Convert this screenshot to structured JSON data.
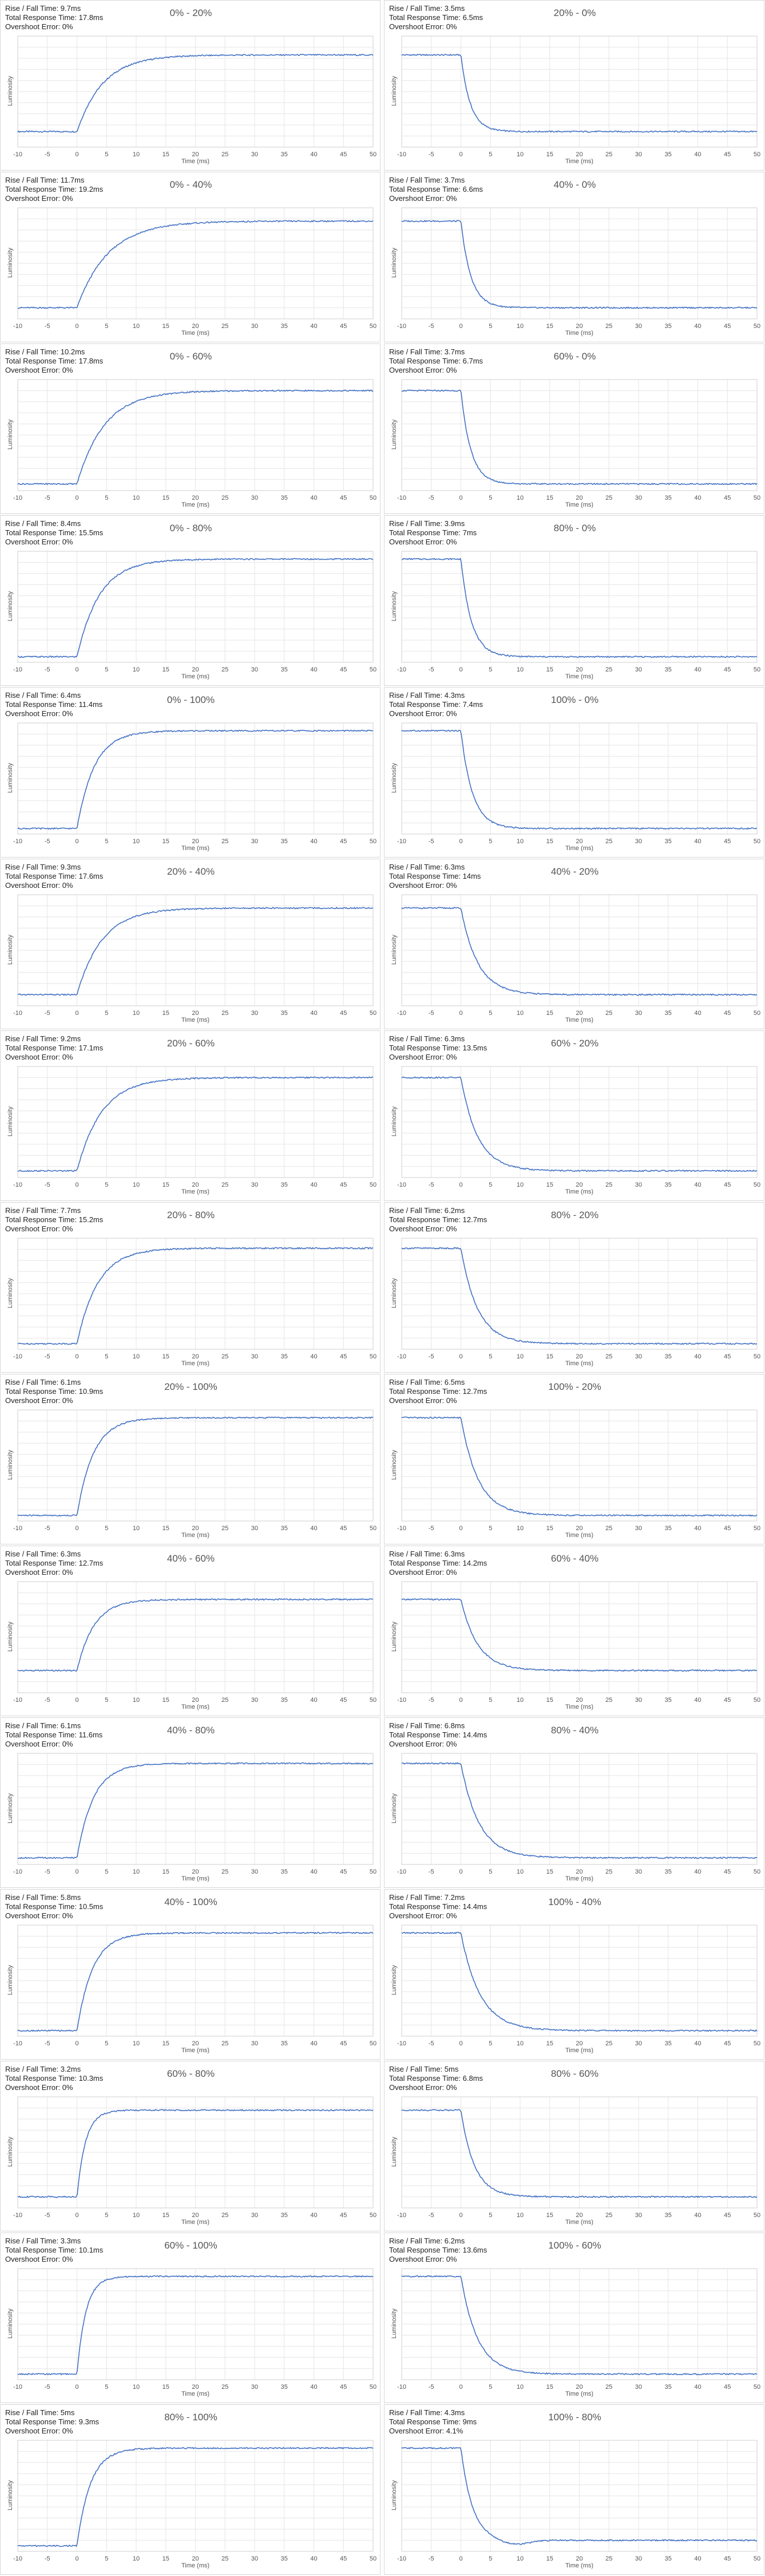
{
  "common": {
    "xlabel": "Time (ms)",
    "ylabel": "Luminosity",
    "xticks": [
      -10,
      -5,
      0,
      5,
      10,
      15,
      20,
      25,
      30,
      35,
      40,
      45,
      50
    ],
    "line_color": "#4472c4",
    "grid_color": "#e6e6e6"
  },
  "chart_data": [
    {
      "type": "line",
      "title": "0% - 20%",
      "rise_fall": "Rise / Fall Time: 9.7ms",
      "total": "Total Response Time: 17.8ms",
      "overshoot": "Overshoot Error: 0%",
      "xlim": [
        -10,
        50
      ],
      "dir": "rise",
      "start": 0.14,
      "end": 0.83,
      "tau": 9.7
    },
    {
      "type": "line",
      "title": "20% - 0%",
      "rise_fall": "Rise / Fall Time: 3.5ms",
      "total": "Total Response Time: 6.5ms",
      "overshoot": "Overshoot Error: 0%",
      "xlim": [
        -10,
        50
      ],
      "dir": "fall",
      "start": 0.83,
      "end": 0.14,
      "tau": 3.5
    },
    {
      "type": "line",
      "title": "0% - 40%",
      "rise_fall": "Rise / Fall Time: 11.7ms",
      "total": "Total Response Time: 19.2ms",
      "overshoot": "Overshoot Error: 0%",
      "xlim": [
        -10,
        50
      ],
      "dir": "rise",
      "start": 0.1,
      "end": 0.88,
      "tau": 11.7
    },
    {
      "type": "line",
      "title": "40% - 0%",
      "rise_fall": "Rise / Fall Time: 3.7ms",
      "total": "Total Response Time: 6.6ms",
      "overshoot": "Overshoot Error: 0%",
      "xlim": [
        -10,
        50
      ],
      "dir": "fall",
      "start": 0.88,
      "end": 0.1,
      "tau": 3.7
    },
    {
      "type": "line",
      "title": "0% - 60%",
      "rise_fall": "Rise / Fall Time: 10.2ms",
      "total": "Total Response Time: 17.8ms",
      "overshoot": "Overshoot Error: 0%",
      "xlim": [
        -10,
        50
      ],
      "dir": "rise",
      "start": 0.06,
      "end": 0.9,
      "tau": 10.2
    },
    {
      "type": "line",
      "title": "60% - 0%",
      "rise_fall": "Rise / Fall Time: 3.7ms",
      "total": "Total Response Time: 6.7ms",
      "overshoot": "Overshoot Error: 0%",
      "xlim": [
        -10,
        50
      ],
      "dir": "fall",
      "start": 0.9,
      "end": 0.06,
      "tau": 3.7
    },
    {
      "type": "line",
      "title": "0% - 80%",
      "rise_fall": "Rise / Fall Time: 8.4ms",
      "total": "Total Response Time: 15.5ms",
      "overshoot": "Overshoot Error: 0%",
      "xlim": [
        -10,
        50
      ],
      "dir": "rise",
      "start": 0.05,
      "end": 0.93,
      "tau": 8.4
    },
    {
      "type": "line",
      "title": "80% - 0%",
      "rise_fall": "Rise / Fall Time: 3.9ms",
      "total": "Total Response Time: 7ms",
      "overshoot": "Overshoot Error: 0%",
      "xlim": [
        -10,
        50
      ],
      "dir": "fall",
      "start": 0.93,
      "end": 0.05,
      "tau": 3.9
    },
    {
      "type": "line",
      "title": "0% - 100%",
      "rise_fall": "Rise / Fall Time: 6.4ms",
      "total": "Total Response Time: 11.4ms",
      "overshoot": "Overshoot Error: 0%",
      "xlim": [
        -10,
        50
      ],
      "dir": "rise",
      "start": 0.05,
      "end": 0.93,
      "tau": 6.4
    },
    {
      "type": "line",
      "title": "100% - 0%",
      "rise_fall": "Rise / Fall Time: 4.3ms",
      "total": "Total Response Time: 7.4ms",
      "overshoot": "Overshoot Error: 0%",
      "xlim": [
        -10,
        50
      ],
      "dir": "fall",
      "start": 0.93,
      "end": 0.05,
      "tau": 4.3
    },
    {
      "type": "line",
      "title": "20% - 40%",
      "rise_fall": "Rise / Fall Time: 9.3ms",
      "total": "Total Response Time: 17.6ms",
      "overshoot": "Overshoot Error: 0%",
      "xlim": [
        -10,
        50
      ],
      "dir": "rise",
      "start": 0.1,
      "end": 0.88,
      "tau": 9.3
    },
    {
      "type": "line",
      "title": "40% - 20%",
      "rise_fall": "Rise / Fall Time: 6.3ms",
      "total": "Total Response Time: 14ms",
      "overshoot": "Overshoot Error: 0%",
      "xlim": [
        -10,
        50
      ],
      "dir": "fall",
      "start": 0.88,
      "end": 0.1,
      "tau": 6.3
    },
    {
      "type": "line",
      "title": "20% - 60%",
      "rise_fall": "Rise / Fall Time: 9.2ms",
      "total": "Total Response Time: 17.1ms",
      "overshoot": "Overshoot Error: 0%",
      "xlim": [
        -10,
        50
      ],
      "dir": "rise",
      "start": 0.06,
      "end": 0.9,
      "tau": 9.2
    },
    {
      "type": "line",
      "title": "60% - 20%",
      "rise_fall": "Rise / Fall Time: 6.3ms",
      "total": "Total Response Time: 13.5ms",
      "overshoot": "Overshoot Error: 0%",
      "xlim": [
        -10,
        50
      ],
      "dir": "fall",
      "start": 0.9,
      "end": 0.06,
      "tau": 6.3
    },
    {
      "type": "line",
      "title": "20% - 80%",
      "rise_fall": "Rise / Fall Time: 7.7ms",
      "total": "Total Response Time: 15.2ms",
      "overshoot": "Overshoot Error: 0%",
      "xlim": [
        -10,
        50
      ],
      "dir": "rise",
      "start": 0.05,
      "end": 0.91,
      "tau": 7.7
    },
    {
      "type": "line",
      "title": "80% - 20%",
      "rise_fall": "Rise / Fall Time: 6.2ms",
      "total": "Total Response Time: 12.7ms",
      "overshoot": "Overshoot Error: 0%",
      "xlim": [
        -10,
        50
      ],
      "dir": "fall",
      "start": 0.91,
      "end": 0.05,
      "tau": 6.2
    },
    {
      "type": "line",
      "title": "20% - 100%",
      "rise_fall": "Rise / Fall Time: 6.1ms",
      "total": "Total Response Time: 10.9ms",
      "overshoot": "Overshoot Error: 0%",
      "xlim": [
        -10,
        50
      ],
      "dir": "rise",
      "start": 0.05,
      "end": 0.93,
      "tau": 6.1
    },
    {
      "type": "line",
      "title": "100% - 20%",
      "rise_fall": "Rise / Fall Time: 6.5ms",
      "total": "Total Response Time: 12.7ms",
      "overshoot": "Overshoot Error: 0%",
      "xlim": [
        -10,
        50
      ],
      "dir": "fall",
      "start": 0.93,
      "end": 0.05,
      "tau": 6.5
    },
    {
      "type": "line",
      "title": "40% - 60%",
      "rise_fall": "Rise / Fall Time: 6.3ms",
      "total": "Total Response Time: 12.7ms",
      "overshoot": "Overshoot Error: 0%",
      "xlim": [
        -10,
        50
      ],
      "dir": "rise",
      "start": 0.2,
      "end": 0.84,
      "tau": 6.3
    },
    {
      "type": "line",
      "title": "60% - 40%",
      "rise_fall": "Rise / Fall Time: 6.3ms",
      "total": "Total Response Time: 14.2ms",
      "overshoot": "Overshoot Error: 0%",
      "xlim": [
        -10,
        50
      ],
      "dir": "fall",
      "start": 0.84,
      "end": 0.2,
      "tau": 6.3
    },
    {
      "type": "line",
      "title": "40% - 80%",
      "rise_fall": "Rise / Fall Time: 6.1ms",
      "total": "Total Response Time: 11.6ms",
      "overshoot": "Overshoot Error: 0%",
      "xlim": [
        -10,
        50
      ],
      "dir": "rise",
      "start": 0.06,
      "end": 0.91,
      "tau": 6.1
    },
    {
      "type": "line",
      "title": "80% - 40%",
      "rise_fall": "Rise / Fall Time: 6.8ms",
      "total": "Total Response Time: 14.4ms",
      "overshoot": "Overshoot Error: 0%",
      "xlim": [
        -10,
        50
      ],
      "dir": "fall",
      "start": 0.91,
      "end": 0.06,
      "tau": 6.8
    },
    {
      "type": "line",
      "title": "40% - 100%",
      "rise_fall": "Rise / Fall Time: 5.8ms",
      "total": "Total Response Time: 10.5ms",
      "overshoot": "Overshoot Error: 0%",
      "xlim": [
        -10,
        50
      ],
      "dir": "rise",
      "start": 0.05,
      "end": 0.93,
      "tau": 5.8
    },
    {
      "type": "line",
      "title": "100% - 40%",
      "rise_fall": "Rise / Fall Time: 7.2ms",
      "total": "Total Response Time: 14.4ms",
      "overshoot": "Overshoot Error: 0%",
      "xlim": [
        -10,
        50
      ],
      "dir": "fall",
      "start": 0.93,
      "end": 0.05,
      "tau": 7.2
    },
    {
      "type": "line",
      "title": "60% - 80%",
      "rise_fall": "Rise / Fall Time: 3.2ms",
      "total": "Total Response Time: 10.3ms",
      "overshoot": "Overshoot Error: 0%",
      "xlim": [
        -10,
        50
      ],
      "dir": "rise",
      "start": 0.1,
      "end": 0.88,
      "tau": 3.2
    },
    {
      "type": "line",
      "title": "80% - 60%",
      "rise_fall": "Rise / Fall Time: 5ms",
      "total": "Total Response Time: 6.8ms",
      "overshoot": "Overshoot Error: 0%",
      "xlim": [
        -10,
        50
      ],
      "dir": "fall",
      "start": 0.88,
      "end": 0.1,
      "tau": 5.0
    },
    {
      "type": "line",
      "title": "60% - 100%",
      "rise_fall": "Rise / Fall Time: 3.3ms",
      "total": "Total Response Time: 10.1ms",
      "overshoot": "Overshoot Error: 0%",
      "xlim": [
        -10,
        50
      ],
      "dir": "rise",
      "start": 0.05,
      "end": 0.93,
      "tau": 3.3
    },
    {
      "type": "line",
      "title": "100% - 60%",
      "rise_fall": "Rise / Fall Time: 6.2ms",
      "total": "Total Response Time: 13.6ms",
      "overshoot": "Overshoot Error: 0%",
      "xlim": [
        -10,
        50
      ],
      "dir": "fall",
      "start": 0.93,
      "end": 0.05,
      "tau": 6.2
    },
    {
      "type": "line",
      "title": "80% - 100%",
      "rise_fall": "Rise / Fall Time: 5ms",
      "total": "Total Response Time: 9.3ms",
      "overshoot": "Overshoot Error: 0%",
      "xlim": [
        -10,
        50
      ],
      "dir": "rise",
      "start": 0.05,
      "end": 0.93,
      "tau": 5.0
    },
    {
      "type": "line",
      "title": "100% - 80%",
      "rise_fall": "Rise / Fall Time: 4.3ms",
      "total": "Total Response Time: 9ms",
      "overshoot": "Overshoot Error: 4.1%",
      "xlim": [
        -10,
        50
      ],
      "dir": "fall",
      "start": 0.93,
      "end": 0.1,
      "tau": 4.3,
      "overshoot_pct": 4.1
    }
  ]
}
